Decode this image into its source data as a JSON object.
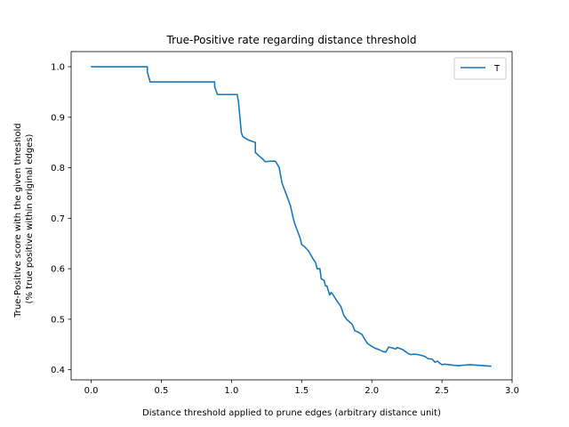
{
  "chart_data": {
    "type": "line",
    "title": "True-Positive rate regarding distance threshold",
    "xlabel": "Distance threshold applied to prune edges (arbitrary distance unit)",
    "ylabel_lines": [
      "True-Positive score with the given threshold",
      "(% true positive within original edges)"
    ],
    "xlim": [
      -0.143,
      3.0
    ],
    "ylim": [
      0.38,
      1.03
    ],
    "xticks": [
      0.0,
      0.5,
      1.0,
      1.5,
      2.0,
      2.5,
      3.0
    ],
    "xtick_labels": [
      "0.0",
      "0.5",
      "1.0",
      "1.5",
      "2.0",
      "2.5",
      "3.0"
    ],
    "yticks": [
      0.4,
      0.5,
      0.6,
      0.7,
      0.8,
      0.9,
      1.0
    ],
    "ytick_labels": [
      "0.4",
      "0.5",
      "0.6",
      "0.7",
      "0.8",
      "0.9",
      "1.0"
    ],
    "grid": false,
    "legend_position": "top-right",
    "series": [
      {
        "name": "T",
        "color": "#1f77b4",
        "x": [
          0.0,
          0.4,
          0.4,
          0.41,
          0.42,
          0.45,
          0.6,
          0.88,
          0.88,
          0.9,
          0.92,
          1.0,
          1.04,
          1.05,
          1.06,
          1.07,
          1.08,
          1.09,
          1.12,
          1.17,
          1.17,
          1.18,
          1.19,
          1.22,
          1.24,
          1.28,
          1.31,
          1.32,
          1.34,
          1.36,
          1.38,
          1.4,
          1.42,
          1.44,
          1.45,
          1.47,
          1.49,
          1.5,
          1.52,
          1.55,
          1.58,
          1.6,
          1.61,
          1.63,
          1.64,
          1.66,
          1.67,
          1.68,
          1.7,
          1.71,
          1.72,
          1.75,
          1.78,
          1.8,
          1.82,
          1.84,
          1.86,
          1.88,
          1.9,
          1.93,
          1.95,
          1.97,
          1.99,
          2.02,
          2.05,
          2.08,
          2.1,
          2.12,
          2.15,
          2.17,
          2.18,
          2.2,
          2.22,
          2.24,
          2.26,
          2.28,
          2.3,
          2.33,
          2.36,
          2.38,
          2.4,
          2.43,
          2.45,
          2.47,
          2.48,
          2.5,
          2.52,
          2.55,
          2.58,
          2.62,
          2.65,
          2.7,
          2.75,
          2.8,
          2.85
        ],
        "y": [
          1.0,
          1.0,
          0.99,
          0.98,
          0.97,
          0.97,
          0.97,
          0.97,
          0.96,
          0.945,
          0.945,
          0.945,
          0.945,
          0.93,
          0.9,
          0.87,
          0.862,
          0.86,
          0.855,
          0.85,
          0.83,
          0.828,
          0.825,
          0.818,
          0.812,
          0.813,
          0.813,
          0.81,
          0.8,
          0.77,
          0.755,
          0.74,
          0.725,
          0.7,
          0.69,
          0.675,
          0.66,
          0.648,
          0.644,
          0.635,
          0.62,
          0.612,
          0.6,
          0.6,
          0.58,
          0.577,
          0.566,
          0.566,
          0.548,
          0.553,
          0.55,
          0.537,
          0.525,
          0.508,
          0.5,
          0.495,
          0.49,
          0.477,
          0.475,
          0.47,
          0.46,
          0.452,
          0.448,
          0.443,
          0.44,
          0.436,
          0.435,
          0.445,
          0.443,
          0.441,
          0.444,
          0.442,
          0.44,
          0.436,
          0.432,
          0.43,
          0.431,
          0.43,
          0.428,
          0.426,
          0.422,
          0.421,
          0.415,
          0.417,
          0.414,
          0.41,
          0.411,
          0.41,
          0.409,
          0.408,
          0.409,
          0.41,
          0.409,
          0.408,
          0.407
        ]
      }
    ]
  }
}
